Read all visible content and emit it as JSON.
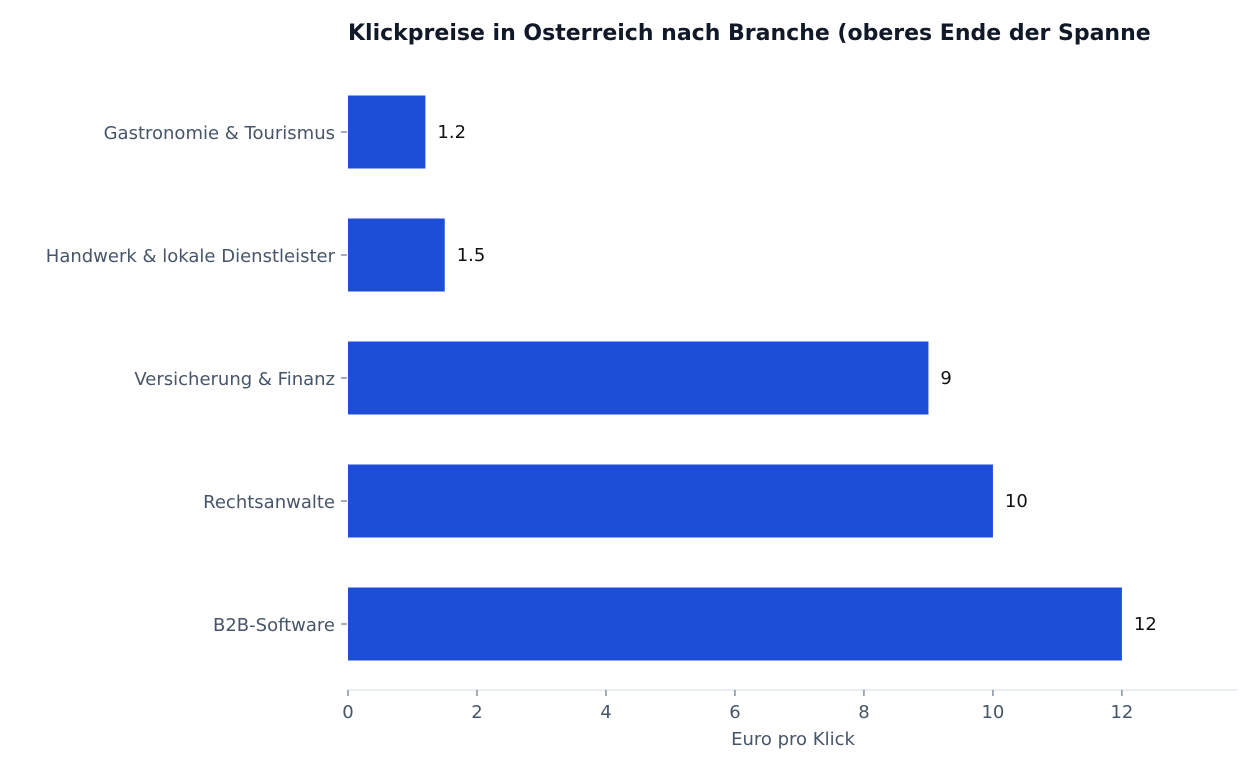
{
  "chart_data": {
    "type": "bar",
    "orientation": "horizontal",
    "title": "Klickpreise in Osterreich nach Branche (oberes Ende der Spanne",
    "xlabel": "Euro pro Klick",
    "ylabel": "",
    "categories": [
      "Gastronomie & Tourismus",
      "Handwerk & lokale Dienstleister",
      "Versicherung & Finanz",
      "Rechtsanwalte",
      "B2B-Software"
    ],
    "values": [
      1.2,
      1.5,
      9,
      10,
      12
    ],
    "value_labels": [
      "1.2",
      "1.5",
      "9",
      "10",
      "12"
    ],
    "xticks": [
      0,
      2,
      4,
      6,
      8,
      10,
      12
    ],
    "xtick_labels": [
      "0",
      "2",
      "4",
      "6",
      "8",
      "10",
      "12"
    ],
    "xlim": [
      0,
      13.8
    ],
    "bar_color": "#1d4ed8",
    "grid": false,
    "legend": "none"
  }
}
